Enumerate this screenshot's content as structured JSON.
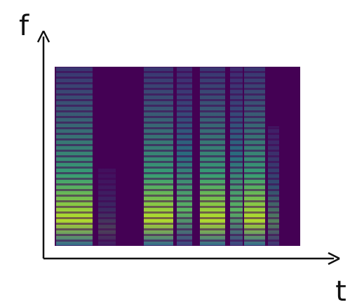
{
  "axes": {
    "y_label": "f",
    "x_label": "t"
  }
}
